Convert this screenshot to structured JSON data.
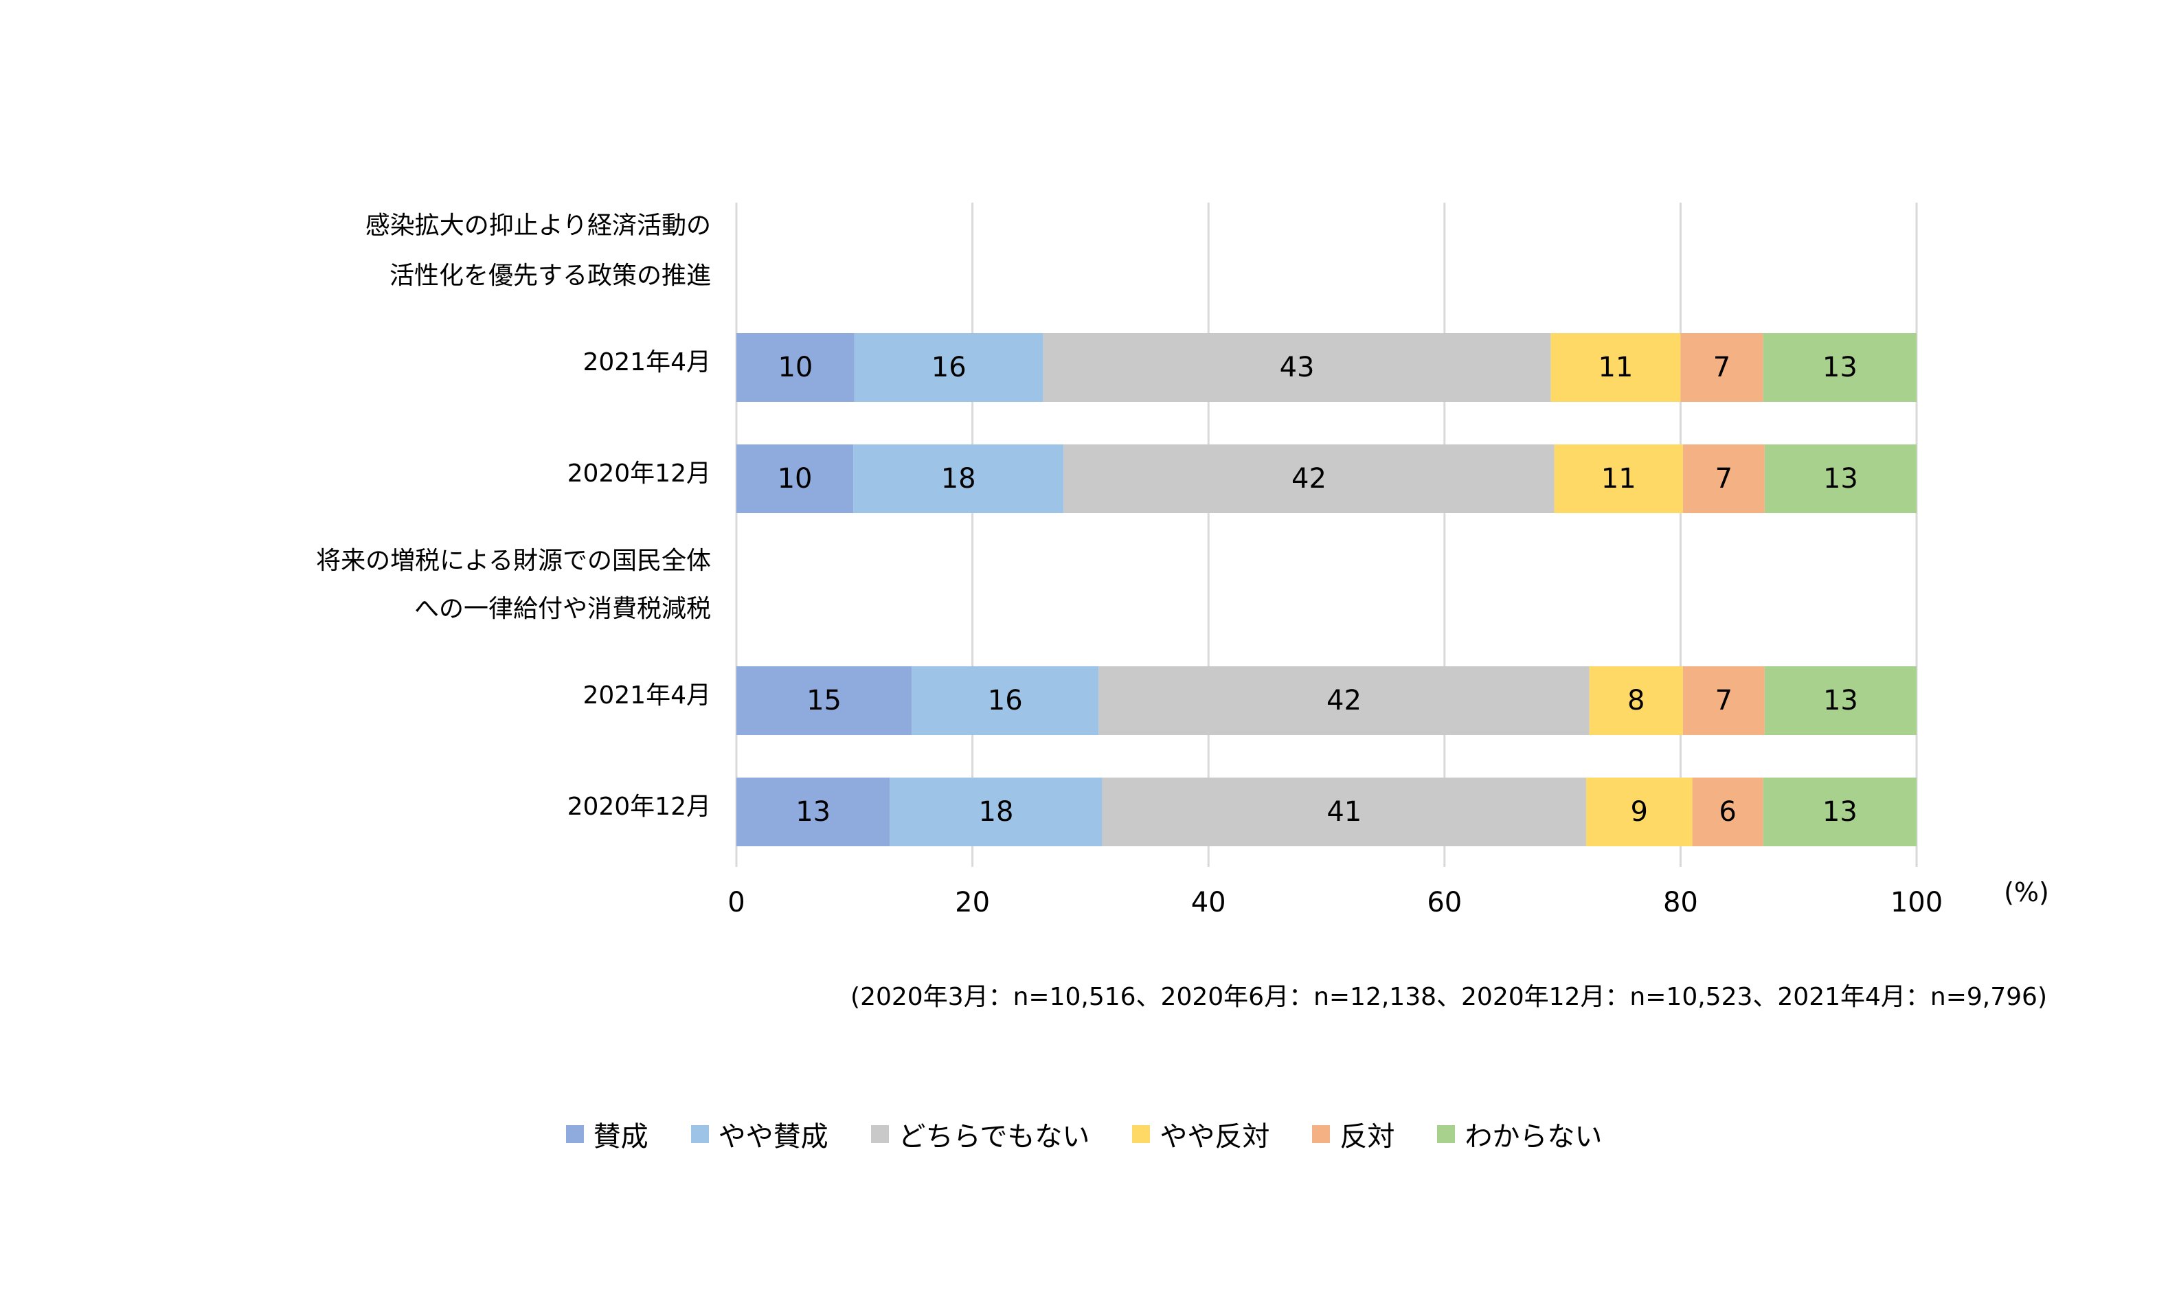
{
  "chart_data": {
    "type": "bar",
    "orientation": "horizontal",
    "stacked": true,
    "groups": [
      {
        "label_lines": [
          "感染拡大の抑止より経済活動の",
          "活性化を優先する政策の推進"
        ],
        "rows": [
          {
            "label": "2021年4月",
            "values": [
              10,
              16,
              43,
              11,
              7,
              13
            ]
          },
          {
            "label": "2020年12月",
            "values": [
              10,
              18,
              42,
              11,
              7,
              13
            ]
          }
        ]
      },
      {
        "label_lines": [
          "将来の増税による財源での国民全体",
          "への一律給付や消費税減税"
        ],
        "rows": [
          {
            "label": "2021年4月",
            "values": [
              15,
              16,
              42,
              8,
              7,
              13
            ]
          },
          {
            "label": "2020年12月",
            "values": [
              13,
              18,
              41,
              9,
              6,
              13
            ]
          }
        ]
      }
    ],
    "series": [
      {
        "name": "賛成",
        "color": "#8faadc"
      },
      {
        "name": "やや賛成",
        "color": "#9dc3e6"
      },
      {
        "name": "どちらでもない",
        "color": "#c9c9c9"
      },
      {
        "name": "やや反対",
        "color": "#ffd966"
      },
      {
        "name": "反対",
        "color": "#f4b183"
      },
      {
        "name": "わからない",
        "color": "#a9d18e"
      }
    ],
    "x_ticks": [
      "0",
      "20",
      "40",
      "60",
      "80",
      "100"
    ],
    "xlim": [
      0,
      100
    ],
    "x_unit": "(%)",
    "legend_position": "bottom",
    "grid": true
  },
  "note": "(2020年3月：n=10,516、2020年6月：n=12,138、2020年12月：n=10,523、2021年4月：n=9,796)"
}
